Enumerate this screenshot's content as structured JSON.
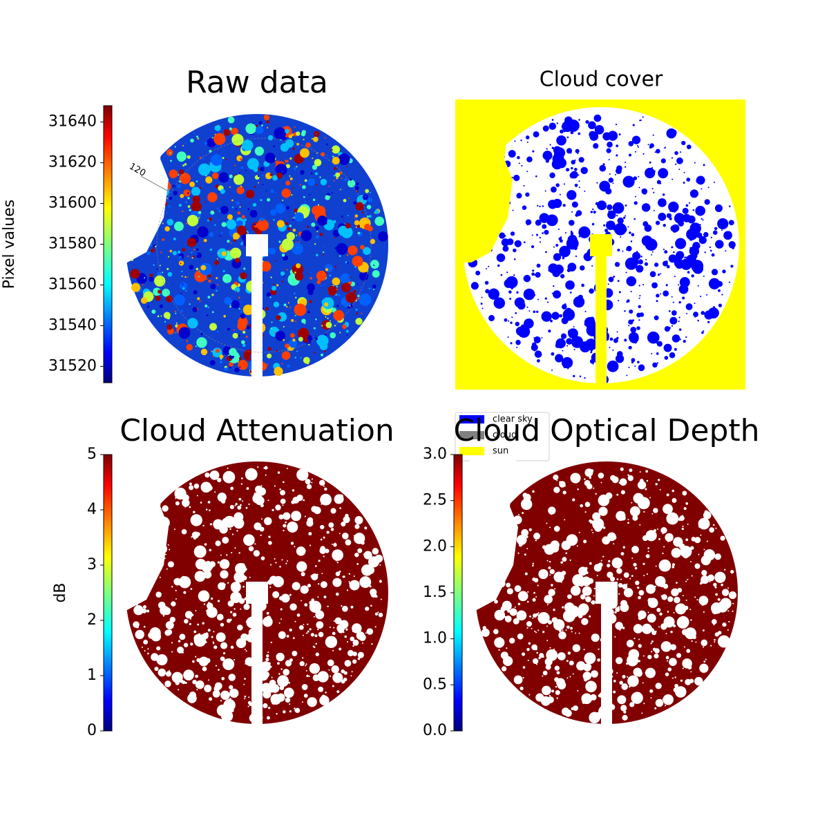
{
  "chart_data": [
    {
      "type": "image",
      "title": "Raw data",
      "ylabel": "Pixel values",
      "colormap": "jet",
      "ylim": [
        31512,
        31648
      ],
      "yticks": [
        31520,
        31540,
        31560,
        31580,
        31600,
        31620,
        31640
      ],
      "annotations": [
        "120"
      ]
    },
    {
      "type": "image",
      "title": "Cloud cover",
      "series": [
        {
          "name": "clear sky",
          "color": "#0000ff"
        },
        {
          "name": "cloud",
          "color": "#808080"
        },
        {
          "name": "sun",
          "color": "#ffff00"
        }
      ]
    },
    {
      "type": "image",
      "title": "Cloud Attenuation",
      "ylabel": "dB",
      "colormap": "jet",
      "ylim": [
        0,
        5
      ],
      "yticks": [
        0,
        1,
        2,
        3,
        4,
        5
      ]
    },
    {
      "type": "image",
      "title": "Cloud Optical Depth",
      "colormap": "jet",
      "ylim": [
        0,
        3
      ],
      "yticks": [
        {
          "value": 0,
          "label": "0.0"
        },
        {
          "value": 0.5,
          "label": "0.5"
        },
        {
          "value": 1,
          "label": "1.0"
        },
        {
          "value": 1.5,
          "label": "1.5"
        },
        {
          "value": 2,
          "label": "2.0"
        },
        {
          "value": 2.5,
          "label": "2.5"
        },
        {
          "value": 3,
          "label": "3.0"
        }
      ]
    }
  ]
}
